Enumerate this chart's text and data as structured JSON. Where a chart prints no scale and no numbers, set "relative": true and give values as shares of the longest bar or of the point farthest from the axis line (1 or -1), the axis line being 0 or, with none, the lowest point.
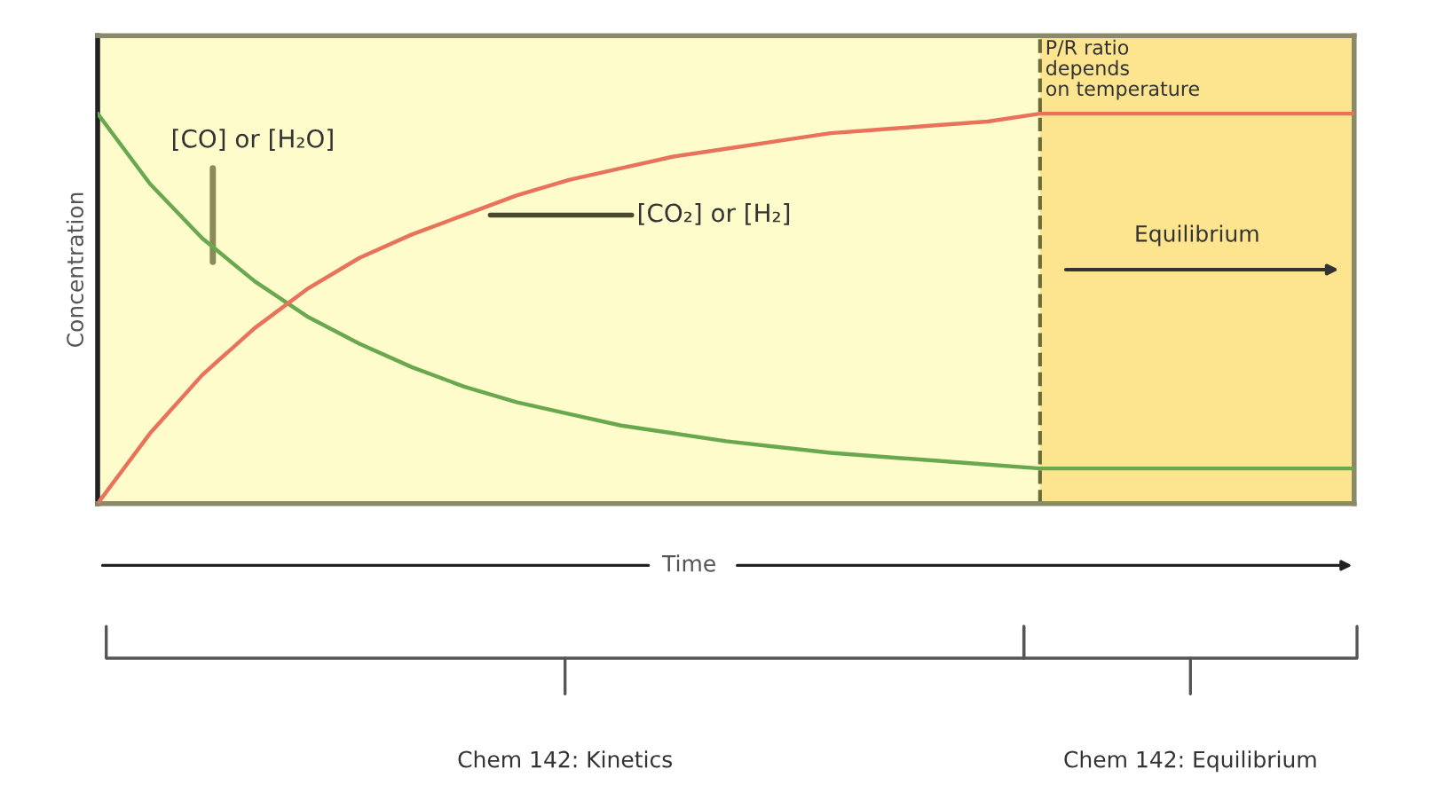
{
  "chart_data": {
    "type": "line",
    "relative": true,
    "ylabel": "Concentration",
    "xlabel": "Time",
    "categories": [
      null,
      null,
      null,
      null,
      null,
      null,
      null,
      null,
      null,
      null,
      null,
      null,
      null,
      null,
      null,
      null,
      null,
      null,
      null,
      null,
      null,
      null,
      null,
      null,
      null
    ],
    "series": [
      {
        "name": "[CO] or [H₂O]",
        "color": "#6aa84f",
        "values": [
          1,
          0.82,
          0.68,
          0.57,
          0.48,
          0.41,
          0.35,
          0.3,
          0.26,
          0.23,
          0.2,
          0.18,
          0.16,
          0.145,
          0.13,
          0.12,
          0.11,
          0.1,
          0.09,
          0.09,
          0.09,
          0.09,
          0.09,
          0.09,
          0.09
        ]
      },
      {
        "name": "[CO₂] or [H₂]",
        "color": "#e8735a",
        "values": [
          0,
          0.18,
          0.33,
          0.45,
          0.55,
          0.63,
          0.69,
          0.74,
          0.79,
          0.83,
          0.86,
          0.89,
          0.91,
          0.93,
          0.95,
          0.96,
          0.97,
          0.98,
          1,
          1,
          1,
          1,
          1,
          1,
          1
        ]
      }
    ],
    "annotations": [
      "P/R ratio\ndepends\non temperature",
      "Equilibrium",
      "Chem 142: Kinetics",
      "Chem 142: Equilibrium"
    ],
    "marker": "none",
    "line_style": "solid"
  }
}
